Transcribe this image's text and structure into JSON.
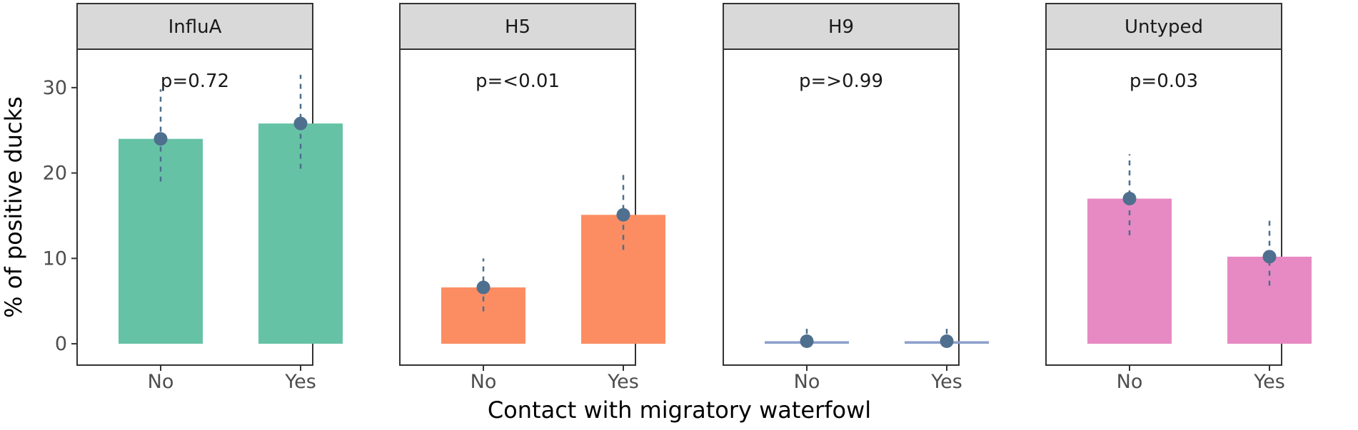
{
  "chart_data": {
    "type": "bar",
    "xlabel": "Contact with migratory waterfowl",
    "ylabel": "% of positive ducks",
    "categories": [
      "No",
      "Yes"
    ],
    "ylim": [
      -2.5,
      34.5
    ],
    "yticks": [
      0,
      10,
      20,
      30
    ],
    "grid": false,
    "legend": "none",
    "panels": [
      {
        "title": "InfluA",
        "pvalue": "p=0.72",
        "color": "#66c2a5",
        "values": [
          24.0,
          25.8
        ],
        "ci_low": [
          19.0,
          20.5
        ],
        "ci_high": [
          29.8,
          31.5
        ]
      },
      {
        "title": "H5",
        "pvalue": "p=<0.01",
        "color": "#fc8d62",
        "values": [
          6.6,
          15.1
        ],
        "ci_low": [
          3.8,
          11.0
        ],
        "ci_high": [
          10.0,
          20.0
        ]
      },
      {
        "title": "H9",
        "pvalue": "p=>0.99",
        "color": "#8da0cb",
        "values": [
          0.3,
          0.3
        ],
        "ci_low": [
          0.0,
          0.0
        ],
        "ci_high": [
          2.1,
          2.1
        ]
      },
      {
        "title": "Untyped",
        "pvalue": "p=0.03",
        "color": "#e78ac3",
        "values": [
          17.0,
          10.2
        ],
        "ci_low": [
          12.7,
          6.8
        ],
        "ci_high": [
          22.2,
          14.5
        ]
      }
    ]
  }
}
